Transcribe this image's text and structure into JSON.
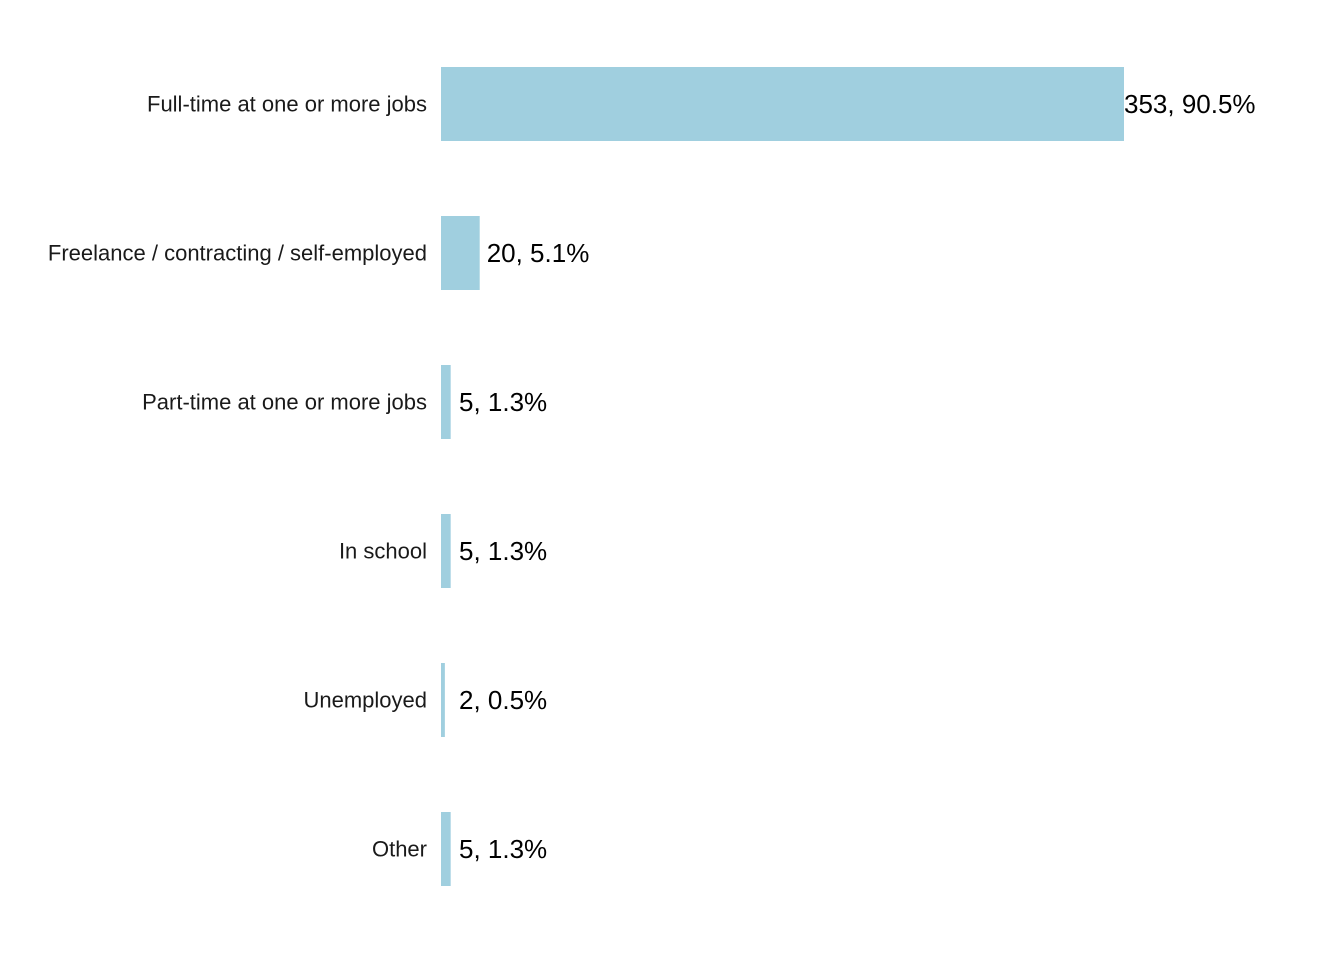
{
  "chart_data": {
    "type": "bar",
    "orientation": "horizontal",
    "categories": [
      "Full-time at one or more jobs",
      "Freelance / contracting / self-employed",
      "Part-time at one or more jobs",
      "In school",
      "Unemployed",
      "Other"
    ],
    "values": [
      353,
      20,
      5,
      5,
      2,
      5
    ],
    "percents": [
      90.5,
      5.1,
      1.3,
      1.3,
      0.5,
      1.3
    ],
    "data_labels": [
      "353, 90.5%",
      "20, 5.1%",
      "5, 1.3%",
      "5, 1.3%",
      "2, 0.5%",
      "5, 1.3%"
    ],
    "bar_color": "#a0cfdf",
    "grid": false,
    "legend": "none",
    "xlim": [
      0,
      353
    ]
  }
}
